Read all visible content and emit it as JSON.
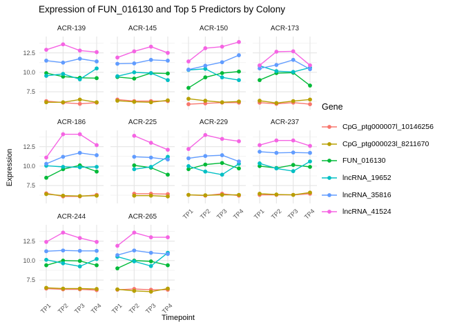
{
  "chart_data": {
    "type": "line",
    "title": "Expression of FUN_016130 and Top 5 Predictors by Colony",
    "xlabel": "Timepoint",
    "ylabel": "Expression",
    "legend_title": "Gene",
    "legend_position": "right",
    "grid": true,
    "x_categories": [
      "TP1",
      "TP2",
      "TP3",
      "TP4"
    ],
    "y_tick_labels": [
      "12.5",
      "10.0",
      "7.5"
    ],
    "y_tick_values": [
      12.5,
      10.0,
      7.5
    ],
    "y_minor_values": [
      6.25,
      8.75,
      11.25,
      13.75
    ],
    "ylim": [
      5.2,
      14.6
    ],
    "series": [
      {
        "name": "CpG_ptg000007l_10146256",
        "color": "#F8766D"
      },
      {
        "name": "CpG_ptg000023l_8211670",
        "color": "#B79F00"
      },
      {
        "name": "FUN_016130",
        "color": "#00BA38"
      },
      {
        "name": "lncRNA_19652",
        "color": "#00BFC4"
      },
      {
        "name": "lncRNA_35816",
        "color": "#619CFF"
      },
      {
        "name": "lncRNA_41524",
        "color": "#F564E3"
      }
    ],
    "facets": [
      {
        "name": "ACR-139",
        "values": [
          [
            6.3,
            6.1,
            5.95,
            6.1
          ],
          [
            6.15,
            6.15,
            6.5,
            6.15
          ],
          [
            9.9,
            9.45,
            9.3,
            9.25
          ],
          [
            9.55,
            9.8,
            9.1,
            10.5
          ],
          [
            11.5,
            11.25,
            11.75,
            11.4
          ],
          [
            12.9,
            13.6,
            12.8,
            12.6
          ]
        ]
      },
      {
        "name": "ACR-145",
        "values": [
          [
            6.5,
            6.3,
            6.3,
            6.3
          ],
          [
            6.35,
            6.2,
            6.15,
            6.4
          ],
          [
            9.4,
            9.2,
            9.9,
            9.85
          ],
          [
            9.5,
            10.0,
            9.9,
            9.0
          ],
          [
            11.1,
            11.15,
            11.6,
            11.5
          ],
          [
            11.9,
            12.7,
            13.3,
            12.5
          ]
        ]
      },
      {
        "name": "ACR-150",
        "values": [
          [
            5.9,
            6.0,
            6.1,
            6.1
          ],
          [
            6.6,
            6.35,
            6.15,
            6.25
          ],
          [
            8.0,
            9.35,
            9.9,
            10.1
          ],
          [
            10.3,
            10.45,
            9.35,
            9.0
          ],
          [
            10.35,
            10.85,
            11.3,
            12.2
          ],
          [
            11.4,
            13.1,
            13.3,
            13.9
          ]
        ]
      },
      {
        "name": "ACR-173",
        "values": [
          [
            6.1,
            5.95,
            6.1,
            5.9
          ],
          [
            6.35,
            6.05,
            6.3,
            6.5
          ],
          [
            9.0,
            9.9,
            9.95,
            8.3
          ],
          [
            10.85,
            10.15,
            10.05,
            10.6
          ],
          [
            10.5,
            10.95,
            11.6,
            10.4
          ],
          [
            10.9,
            12.65,
            12.7,
            10.9
          ]
        ]
      },
      {
        "name": "ACR-186",
        "values": [
          [
            6.5,
            6.1,
            6.1,
            6.3
          ],
          [
            6.4,
            6.2,
            6.15,
            6.2
          ],
          [
            8.5,
            9.6,
            10.1,
            9.3
          ],
          [
            10.05,
            9.9,
            9.85,
            9.9
          ],
          [
            10.3,
            11.2,
            11.7,
            11.4
          ],
          [
            11.1,
            14.1,
            14.1,
            12.7
          ]
        ]
      },
      {
        "name": "ACR-225",
        "values": [
          [
            null,
            6.45,
            6.45,
            6.4
          ],
          [
            null,
            6.2,
            6.2,
            6.1
          ],
          [
            null,
            10.1,
            9.8,
            8.9
          ],
          [
            null,
            9.6,
            9.9,
            11.2
          ],
          [
            null,
            11.2,
            11.1,
            10.85
          ],
          [
            null,
            13.9,
            13.0,
            12.1
          ]
        ]
      },
      {
        "name": "ACR-229",
        "values": [
          [
            6.3,
            6.2,
            6.45,
            6.2
          ],
          [
            6.3,
            6.25,
            6.3,
            6.3
          ],
          [
            9.6,
            10.2,
            10.4,
            9.7
          ],
          [
            10.0,
            9.3,
            8.9,
            10.3
          ],
          [
            11.0,
            11.3,
            11.4,
            10.6
          ],
          [
            12.2,
            14.0,
            13.5,
            13.2
          ]
        ]
      },
      {
        "name": "ACR-237",
        "values": [
          [
            6.3,
            6.3,
            6.3,
            6.45
          ],
          [
            6.45,
            6.35,
            6.3,
            6.6
          ],
          [
            10.0,
            9.75,
            10.15,
            9.9
          ],
          [
            10.35,
            9.7,
            9.35,
            10.6
          ],
          [
            11.85,
            11.7,
            11.75,
            11.7
          ],
          [
            12.7,
            13.3,
            13.3,
            12.6
          ]
        ]
      },
      {
        "name": "ACR-244",
        "values": [
          [
            6.4,
            6.3,
            6.3,
            6.2
          ],
          [
            6.5,
            6.4,
            6.4,
            6.35
          ],
          [
            9.4,
            10.0,
            9.95,
            9.4
          ],
          [
            10.1,
            9.65,
            9.25,
            10.2
          ],
          [
            11.2,
            11.3,
            11.25,
            11.25
          ],
          [
            12.4,
            13.6,
            12.9,
            12.4
          ]
        ]
      },
      {
        "name": "ACR-265",
        "values": [
          [
            6.25,
            6.35,
            6.25,
            6.25
          ],
          [
            6.3,
            6.1,
            6.0,
            6.4
          ],
          [
            9.0,
            10.0,
            9.9,
            9.4
          ],
          [
            10.5,
            9.9,
            9.3,
            11.0
          ],
          [
            10.7,
            11.3,
            11.0,
            10.85
          ],
          [
            11.9,
            13.6,
            13.0,
            13.0
          ]
        ]
      }
    ],
    "grid_colors": {
      "major": "#e4e4e4",
      "minor": "#f3f3f3"
    }
  }
}
